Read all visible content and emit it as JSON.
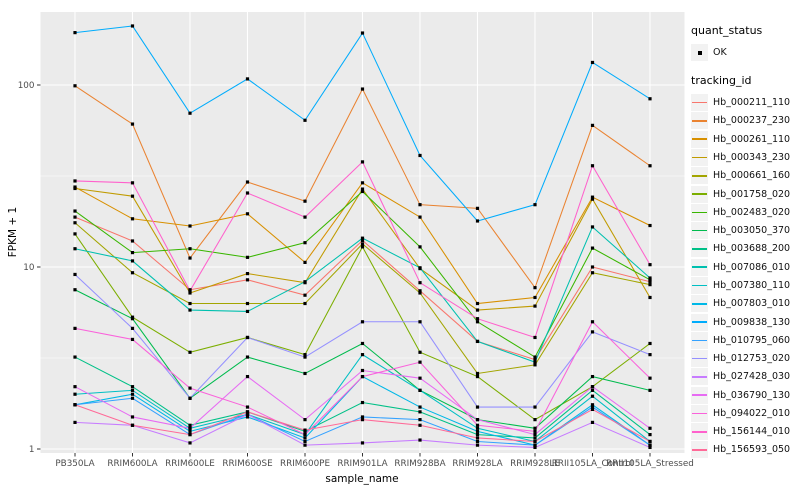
{
  "chart_data": {
    "type": "line",
    "title": "",
    "xlabel": "sample_name",
    "ylabel": "FPKM + 1",
    "y_scale": "log10",
    "y_ticks": [
      1,
      10,
      100
    ],
    "y_tick_labels": [
      "1",
      "10",
      "100"
    ],
    "y_minor_gridlines": [
      3.1623,
      31.623
    ],
    "ylim_display": [
      0.93,
      258
    ],
    "categories": [
      "PB350LA",
      "RRIM600LA",
      "RRIM600LE",
      "RRIM600SE",
      "RRIM600PE",
      "RRIM901LA",
      "RRIM928BA",
      "RRIM928LA",
      "RRIM928LE",
      "RRII105LA_Control",
      "RRII105LA_Stressed"
    ],
    "legend": {
      "position": "right",
      "quant_status_title": "quant_status",
      "quant_status_items": [
        "OK"
      ],
      "tracking_id_title": "tracking_id"
    },
    "layout": {
      "grid": true,
      "panel_bg": "#EBEBEB",
      "grid_color": "#FFFFFF",
      "tick_label_color": "#4D4D4D",
      "tick_mark_color": "#333333",
      "point_color": "#000000",
      "legend_key_bg": "#F2F2F2"
    },
    "series": [
      {
        "name": "Hb_000211_110",
        "color": "#F8766D",
        "values": [
          18.8,
          13.9,
          7.5,
          8.5,
          7.0,
          14.0,
          7.4,
          3.9,
          3.1,
          10.0,
          8.3
        ]
      },
      {
        "name": "Hb_000237_230",
        "color": "#EA8331",
        "values": [
          99,
          61,
          11.2,
          29.3,
          23,
          95,
          22,
          21,
          7.7,
          60,
          36
        ]
      },
      {
        "name": "Hb_000261_110",
        "color": "#D89000",
        "values": [
          27.5,
          18.4,
          16.8,
          19.6,
          10.6,
          29,
          18.8,
          6.3,
          6.8,
          24.2,
          16.9
        ]
      },
      {
        "name": "Hb_000343_230",
        "color": "#C09B00",
        "values": [
          27.0,
          24.5,
          7.2,
          9.2,
          8.2,
          26.8,
          9.8,
          5.8,
          6.1,
          23.6,
          6.8
        ]
      },
      {
        "name": "Hb_000661_160",
        "color": "#A3A500",
        "values": [
          17.5,
          9.3,
          6.3,
          6.3,
          6.3,
          13.4,
          7.2,
          2.6,
          2.9,
          9.3,
          8.0
        ]
      },
      {
        "name": "Hb_001758_020",
        "color": "#7CAE00",
        "values": [
          15.2,
          5.3,
          3.4,
          4.1,
          3.3,
          12.9,
          3.4,
          2.5,
          1.45,
          2.2,
          3.8
        ]
      },
      {
        "name": "Hb_002483_020",
        "color": "#39B600",
        "values": [
          20.3,
          12.0,
          12.6,
          11.3,
          13.6,
          26.0,
          12.9,
          5.0,
          3.2,
          12.7,
          8.5
        ]
      },
      {
        "name": "Hb_003050_370",
        "color": "#00BB4E",
        "values": [
          7.5,
          5.2,
          1.9,
          3.2,
          2.6,
          3.8,
          2.1,
          1.45,
          1.3,
          2.5,
          2.1
        ]
      },
      {
        "name": "Hb_003688_200",
        "color": "#00C087",
        "values": [
          3.2,
          2.2,
          1.35,
          1.6,
          1.25,
          1.8,
          1.6,
          1.2,
          1.15,
          2.1,
          1.2
        ]
      },
      {
        "name": "Hb_007086_010",
        "color": "#00C0AF",
        "values": [
          12.6,
          10.8,
          5.8,
          5.7,
          8.3,
          14.4,
          9.9,
          3.9,
          3.0,
          16.6,
          8.7
        ]
      },
      {
        "name": "Hb_007380_110",
        "color": "#00BFC4",
        "values": [
          2.0,
          2.1,
          1.3,
          1.55,
          1.2,
          3.3,
          2.1,
          1.3,
          1.1,
          1.95,
          1.1
        ]
      },
      {
        "name": "Hb_007803_010",
        "color": "#00B8E7",
        "values": [
          1.75,
          2.0,
          1.25,
          1.5,
          1.15,
          2.5,
          1.7,
          1.25,
          1.05,
          1.75,
          1.05
        ]
      },
      {
        "name": "Hb_009838_130",
        "color": "#00ACFC",
        "values": [
          194,
          211,
          70,
          108,
          64,
          193,
          41,
          17.9,
          22,
          133,
          84
        ]
      },
      {
        "name": "Hb_010795_060",
        "color": "#35A2FF",
        "values": [
          1.75,
          1.9,
          1.2,
          1.55,
          1.1,
          1.5,
          1.45,
          1.1,
          1.05,
          1.7,
          1.05
        ]
      },
      {
        "name": "Hb_012753_020",
        "color": "#9590FF",
        "values": [
          9.1,
          4.6,
          1.9,
          4.1,
          3.2,
          5.0,
          5.0,
          1.7,
          1.7,
          4.4,
          3.3
        ]
      },
      {
        "name": "Hb_027428_030",
        "color": "#C77CFF",
        "values": [
          1.4,
          1.35,
          1.08,
          1.55,
          1.05,
          1.08,
          1.12,
          1.05,
          1.02,
          1.4,
          1.02
        ]
      },
      {
        "name": "Hb_036790_130",
        "color": "#E76BF3",
        "values": [
          2.2,
          1.5,
          1.3,
          2.5,
          1.45,
          2.7,
          2.45,
          1.45,
          1.2,
          2.2,
          1.3
        ]
      },
      {
        "name": "Hb_094022_010",
        "color": "#FA62DB",
        "values": [
          4.6,
          4.0,
          2.16,
          1.7,
          1.2,
          2.5,
          3.0,
          1.35,
          1.25,
          5.0,
          2.45
        ]
      },
      {
        "name": "Hb_156144_010",
        "color": "#FF61CC",
        "values": [
          29.7,
          29,
          7.4,
          25.5,
          18.8,
          37.8,
          8.2,
          5.2,
          4.1,
          36,
          10.3
        ]
      },
      {
        "name": "Hb_156593_050",
        "color": "#FF6A98",
        "values": [
          1.75,
          1.35,
          1.2,
          1.6,
          1.27,
          1.45,
          1.35,
          1.15,
          1.1,
          1.65,
          1.1
        ]
      }
    ]
  }
}
